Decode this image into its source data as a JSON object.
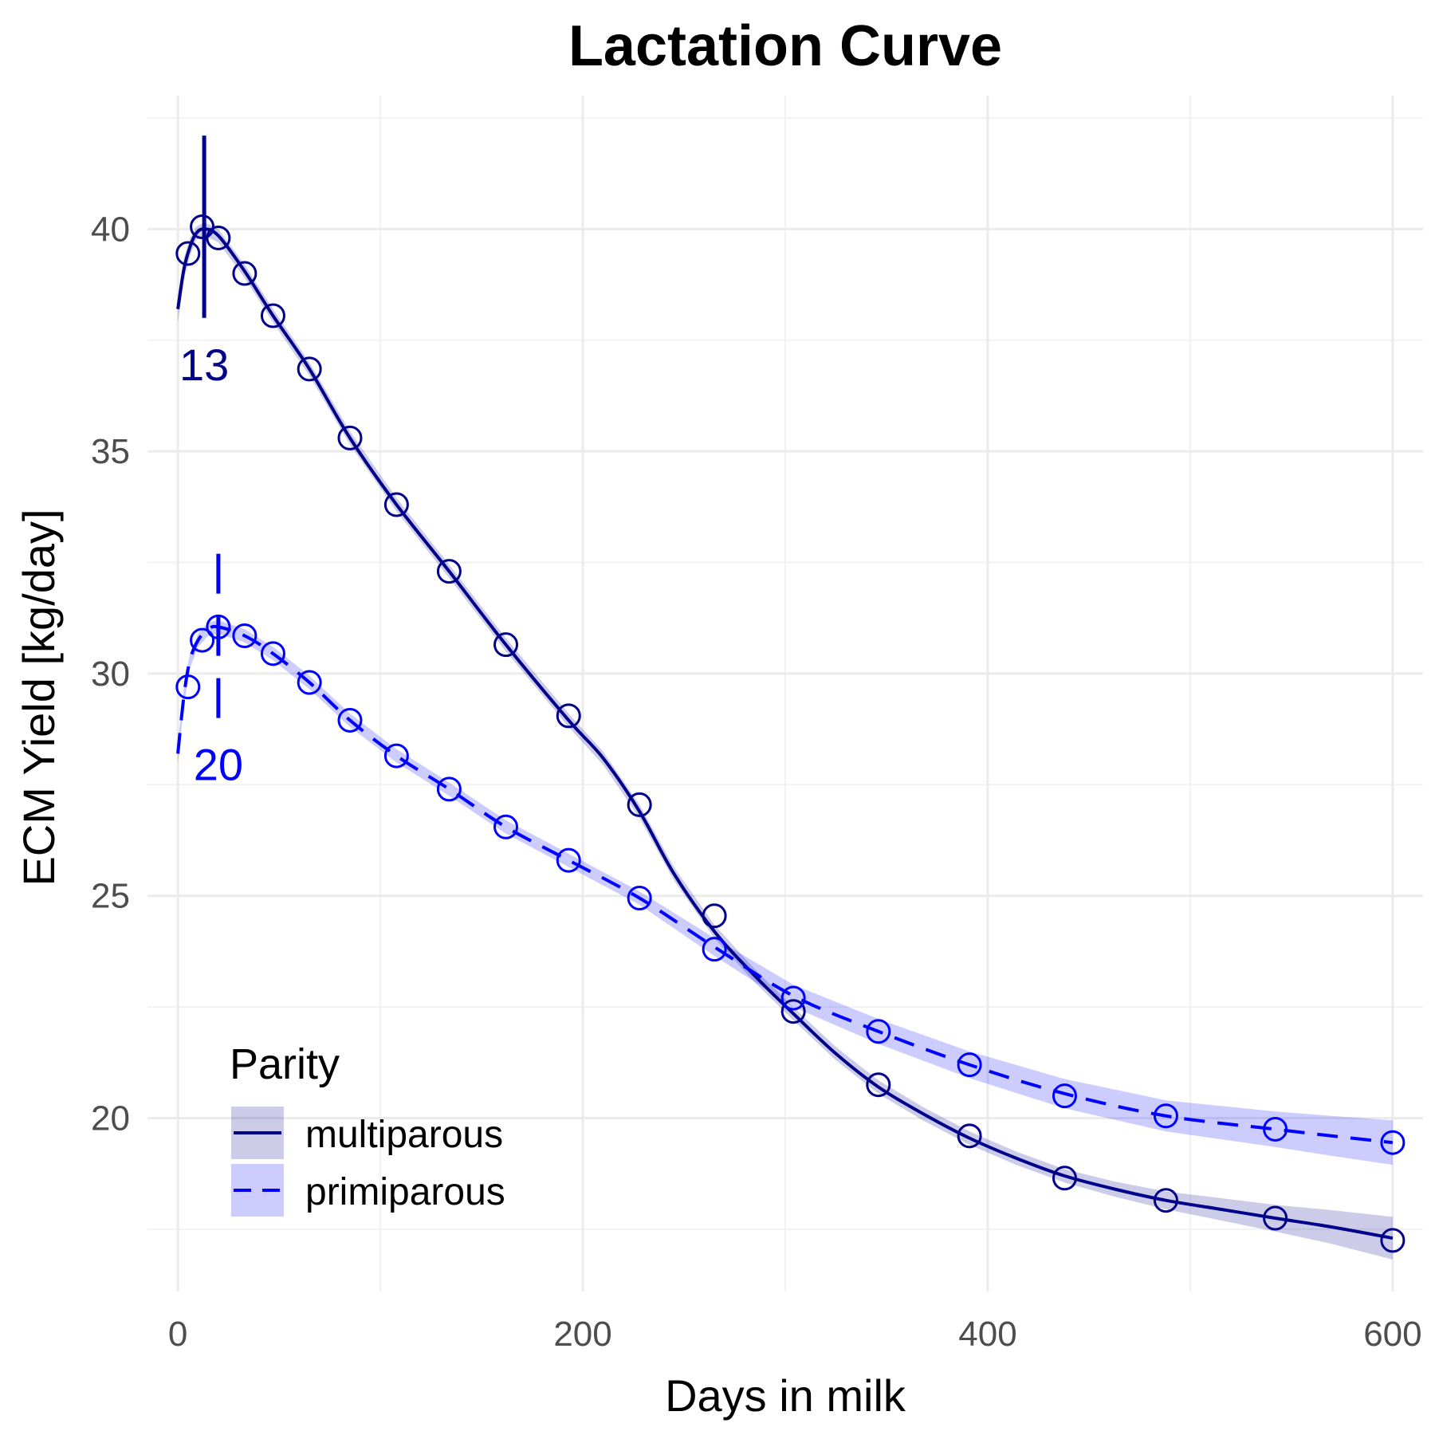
{
  "chart_data": {
    "type": "line",
    "title": "Lactation Curve",
    "xlabel": "Days in milk",
    "ylabel": "ECM Yield [kg/day]",
    "xlim": [
      -15,
      615
    ],
    "ylim": [
      16.1,
      43.0
    ],
    "x_ticks": [
      0,
      200,
      400,
      600
    ],
    "y_ticks": [
      20,
      25,
      30,
      35,
      40
    ],
    "grid": true,
    "legend": {
      "title": "Parity",
      "position": "bottom-left"
    },
    "series": [
      {
        "name": "multiparous",
        "color": "#00008b",
        "linestyle": "solid",
        "band_color": "#00008b",
        "points_x": [
          5,
          12,
          20,
          33,
          47,
          65,
          85,
          108,
          134,
          162,
          193,
          228,
          265,
          304,
          346,
          391,
          438,
          488,
          542,
          600
        ],
        "points_y": [
          39.45,
          40.05,
          39.8,
          39.0,
          38.05,
          36.85,
          35.3,
          33.8,
          32.3,
          30.65,
          29.05,
          27.05,
          24.55,
          22.4,
          20.75,
          19.6,
          18.65,
          18.15,
          17.75,
          17.25
        ],
        "curve_x": [
          0,
          3,
          6,
          9,
          13,
          20,
          33,
          47,
          65,
          85,
          108,
          134,
          162,
          193,
          210,
          228,
          245,
          265,
          285,
          304,
          325,
          346,
          368,
          391,
          414,
          438,
          463,
          488,
          515,
          542,
          570,
          600
        ],
        "curve_y": [
          38.2,
          39.1,
          39.6,
          39.9,
          40.0,
          39.85,
          39.05,
          38.05,
          36.85,
          35.3,
          33.8,
          32.3,
          30.65,
          28.95,
          28.1,
          26.9,
          25.5,
          24.2,
          23.2,
          22.35,
          21.45,
          20.7,
          20.1,
          19.55,
          19.1,
          18.7,
          18.4,
          18.15,
          17.95,
          17.75,
          17.55,
          17.3
        ],
        "band_width": [
          0.3,
          0.25,
          0.2,
          0.15,
          0.15,
          0.15,
          0.15,
          0.15,
          0.15,
          0.15,
          0.15,
          0.15,
          0.15,
          0.15,
          0.15,
          0.15,
          0.15,
          0.15,
          0.15,
          0.15,
          0.15,
          0.15,
          0.15,
          0.15,
          0.15,
          0.15,
          0.17,
          0.2,
          0.25,
          0.3,
          0.38,
          0.48
        ],
        "peak_day": 13,
        "peak_label": "13",
        "peak_line_y": [
          38.0,
          42.1
        ]
      },
      {
        "name": "primiparous",
        "color": "#0000ff",
        "linestyle": "dashed",
        "band_color": "#0000ff",
        "points_x": [
          5,
          12,
          20,
          33,
          47,
          65,
          85,
          108,
          134,
          162,
          193,
          228,
          265,
          304,
          346,
          391,
          438,
          488,
          542,
          600
        ],
        "points_y": [
          29.7,
          30.75,
          31.05,
          30.85,
          30.45,
          29.8,
          28.95,
          28.15,
          27.4,
          26.55,
          25.8,
          24.95,
          23.8,
          22.7,
          21.95,
          21.2,
          20.5,
          20.05,
          19.75,
          19.45
        ],
        "curve_x": [
          0,
          3,
          6,
          10,
          15,
          20,
          33,
          47,
          65,
          85,
          108,
          134,
          162,
          193,
          228,
          265,
          304,
          346,
          391,
          438,
          488,
          542,
          570,
          600
        ],
        "curve_y": [
          28.2,
          29.5,
          30.3,
          30.75,
          31.0,
          31.05,
          30.85,
          30.45,
          29.8,
          28.95,
          28.15,
          27.4,
          26.55,
          25.8,
          24.95,
          23.85,
          22.75,
          21.95,
          21.2,
          20.55,
          20.05,
          19.75,
          19.6,
          19.45
        ],
        "band_width": [
          0.25,
          0.2,
          0.18,
          0.15,
          0.15,
          0.15,
          0.15,
          0.15,
          0.15,
          0.15,
          0.15,
          0.15,
          0.15,
          0.15,
          0.15,
          0.2,
          0.25,
          0.28,
          0.3,
          0.33,
          0.35,
          0.4,
          0.45,
          0.5
        ],
        "peak_day": 20,
        "peak_label": "20",
        "peak_line_y": [
          29.0,
          33.1
        ]
      }
    ]
  }
}
